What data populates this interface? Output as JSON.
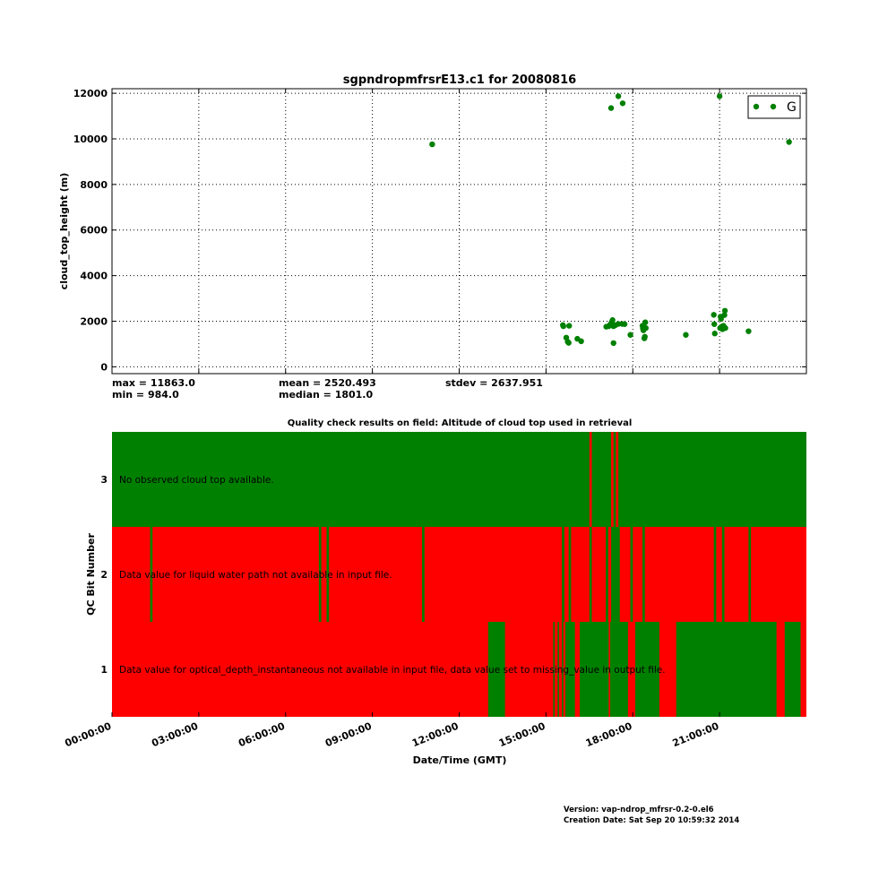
{
  "chart_data": [
    {
      "type": "scatter",
      "title": "sgpndropmfrsrE13.c1 for 20080816",
      "xlabel": "",
      "ylabel": "cloud_top_height (m)",
      "xlim_hours": [
        0,
        24
      ],
      "ylim": [
        -300,
        12200
      ],
      "yticks": [
        "0",
        "2000",
        "4000",
        "6000",
        "8000",
        "10000",
        "12000"
      ],
      "grid": true,
      "legend": {
        "placement": "top-right",
        "entries": [
          "G"
        ]
      },
      "series": [
        {
          "name": "G",
          "color": "#008000",
          "points": [
            {
              "x": "11:04",
              "y": 9760
            },
            {
              "x": "15:35",
              "y": 1830
            },
            {
              "x": "15:36",
              "y": 1780
            },
            {
              "x": "15:42",
              "y": 1280
            },
            {
              "x": "15:45",
              "y": 1100
            },
            {
              "x": "15:47",
              "y": 1050
            },
            {
              "x": "15:48",
              "y": 1800
            },
            {
              "x": "16:05",
              "y": 1230
            },
            {
              "x": "16:13",
              "y": 1120
            },
            {
              "x": "17:05",
              "y": 1760
            },
            {
              "x": "17:10",
              "y": 1780
            },
            {
              "x": "17:13",
              "y": 1850
            },
            {
              "x": "17:16",
              "y": 1950
            },
            {
              "x": "17:18",
              "y": 2050
            },
            {
              "x": "17:20",
              "y": 1780
            },
            {
              "x": "17:24",
              "y": 1830
            },
            {
              "x": "17:30",
              "y": 1880
            },
            {
              "x": "17:38",
              "y": 1880
            },
            {
              "x": "17:43",
              "y": 1870
            },
            {
              "x": "17:55",
              "y": 1400
            },
            {
              "x": "17:15",
              "y": 11350
            },
            {
              "x": "17:30",
              "y": 11870
            },
            {
              "x": "17:39",
              "y": 11560
            },
            {
              "x": "17:20",
              "y": 1040
            },
            {
              "x": "18:20",
              "y": 1800
            },
            {
              "x": "18:21",
              "y": 1680
            },
            {
              "x": "18:22",
              "y": 1600
            },
            {
              "x": "18:24",
              "y": 1250
            },
            {
              "x": "18:25",
              "y": 1320
            },
            {
              "x": "18:26",
              "y": 1950
            },
            {
              "x": "18:27",
              "y": 1700
            },
            {
              "x": "19:50",
              "y": 1400
            },
            {
              "x": "20:48",
              "y": 2280
            },
            {
              "x": "20:49",
              "y": 1870
            },
            {
              "x": "20:50",
              "y": 1460
            },
            {
              "x": "21:00",
              "y": 11870
            },
            {
              "x": "21:01",
              "y": 1700
            },
            {
              "x": "21:02",
              "y": 2200
            },
            {
              "x": "21:03",
              "y": 2100
            },
            {
              "x": "21:04",
              "y": 1760
            },
            {
              "x": "21:06",
              "y": 1650
            },
            {
              "x": "21:08",
              "y": 1800
            },
            {
              "x": "21:10",
              "y": 2270
            },
            {
              "x": "21:11",
              "y": 2460
            },
            {
              "x": "21:12",
              "y": 1700
            },
            {
              "x": "22:00",
              "y": 1560
            },
            {
              "x": "23:24",
              "y": 9860
            }
          ]
        }
      ],
      "stats": {
        "max": "max = 11863.0",
        "min": "min = 984.0",
        "mean": "mean = 2520.493",
        "median": "median = 1801.0",
        "stdev": "stdev = 2637.951"
      }
    },
    {
      "type": "heatmap",
      "title": "Quality check results on field: Altitude of cloud top used in retrieval",
      "xlabel": "Date/Time (GMT)",
      "ylabel": "QC Bit Number",
      "xticks": [
        "00:00:00",
        "03:00:00",
        "06:00:00",
        "09:00:00",
        "12:00:00",
        "15:00:00",
        "18:00:00",
        "21:00:00"
      ],
      "xlim_hours": [
        0,
        24
      ],
      "colors": {
        "good": "#008000",
        "bad": "#ff0000"
      },
      "rows": [
        {
          "bit": "3",
          "description": "No observed cloud top available.",
          "default": "good",
          "intervals": [
            {
              "start": "16:30",
              "end": "16:35",
              "state": "bad"
            },
            {
              "start": "17:15",
              "end": "17:20",
              "state": "bad"
            },
            {
              "start": "17:25",
              "end": "17:30",
              "state": "bad"
            }
          ]
        },
        {
          "bit": "2",
          "description": "Data value for liquid water path not available in input file.",
          "default": "bad",
          "intervals": [
            {
              "start": "01:19",
              "end": "01:24",
              "state": "good"
            },
            {
              "start": "07:09",
              "end": "07:14",
              "state": "good"
            },
            {
              "start": "07:25",
              "end": "07:30",
              "state": "good"
            },
            {
              "start": "10:43",
              "end": "10:48",
              "state": "good"
            },
            {
              "start": "15:33",
              "end": "15:38",
              "state": "good"
            },
            {
              "start": "15:47",
              "end": "15:52",
              "state": "good"
            },
            {
              "start": "16:30",
              "end": "16:35",
              "state": "good"
            },
            {
              "start": "17:04",
              "end": "17:09",
              "state": "good"
            },
            {
              "start": "17:15",
              "end": "17:33",
              "state": "good"
            },
            {
              "start": "17:55",
              "end": "18:00",
              "state": "good"
            },
            {
              "start": "18:20",
              "end": "18:25",
              "state": "good"
            },
            {
              "start": "20:48",
              "end": "20:53",
              "state": "good"
            },
            {
              "start": "21:05",
              "end": "21:10",
              "state": "good"
            },
            {
              "start": "22:00",
              "end": "22:05",
              "state": "good"
            }
          ]
        },
        {
          "bit": "1",
          "description": "Data value for optical_depth_instantaneous not available in input file, data value set to missing_value in output file.",
          "default": "bad",
          "intervals": [
            {
              "start": "13:00",
              "end": "13:35",
              "state": "good"
            },
            {
              "start": "15:15",
              "end": "15:18",
              "state": "good"
            },
            {
              "start": "15:24",
              "end": "15:27",
              "state": "good"
            },
            {
              "start": "15:33",
              "end": "15:36",
              "state": "good"
            },
            {
              "start": "15:40",
              "end": "16:00",
              "state": "good"
            },
            {
              "start": "16:10",
              "end": "17:10",
              "state": "good"
            },
            {
              "start": "17:13",
              "end": "17:50",
              "state": "good"
            },
            {
              "start": "18:05",
              "end": "18:55",
              "state": "good"
            },
            {
              "start": "19:30",
              "end": "22:58",
              "state": "good"
            },
            {
              "start": "23:15",
              "end": "23:48",
              "state": "good"
            }
          ]
        }
      ]
    }
  ],
  "footer": {
    "version": "Version: vap-ndrop_mfrsr-0.2-0.el6",
    "creation": "Creation Date: Sat Sep 20 10:59:32 2014"
  }
}
